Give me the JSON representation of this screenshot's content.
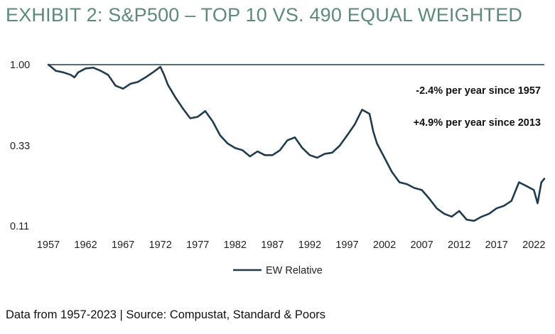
{
  "title": "EXHIBIT 2: S&P500 – TOP 10 VS. 490 EQUAL WEIGHTED",
  "source": "Data from 1957-2023 | Source: Compustat, Standard & Poors",
  "colors": {
    "title": "#5d8a7d",
    "series": "#1f3b4d",
    "refline": "#1f3b4d"
  },
  "chart_data": {
    "type": "line",
    "title": "EXHIBIT 2: S&P500 – TOP 10 VS. 490 EQUAL WEIGHTED",
    "xlabel": "",
    "ylabel": "",
    "xlim": [
      1957,
      2023.4
    ],
    "ylim": [
      0.11,
      1.0
    ],
    "yscale": "log",
    "x_ticks": [
      "1957",
      "1962",
      "1967",
      "1972",
      "1977",
      "1982",
      "1987",
      "1992",
      "1997",
      "2002",
      "2007",
      "2012",
      "2017",
      "2022"
    ],
    "y_ticks": [
      "1.00",
      "0.33",
      "0.11"
    ],
    "reference_line": 1.0,
    "grid": false,
    "legend": {
      "position": "bottom-center",
      "entries": [
        "EW Relative"
      ]
    },
    "annotations": [
      "-2.4% per year since 1957",
      "+4.9% per year since 2013"
    ],
    "series": [
      {
        "name": "EW Relative",
        "x": [
          1957,
          1957.5,
          1958,
          1959,
          1960,
          1960.5,
          1961,
          1962,
          1963,
          1964,
          1965,
          1966,
          1967,
          1968,
          1969,
          1970,
          1971,
          1972,
          1972.5,
          1973,
          1974,
          1975,
          1976,
          1977,
          1978,
          1979,
          1980,
          1981,
          1982,
          1983,
          1984,
          1985,
          1986,
          1987,
          1988,
          1989,
          1990,
          1991,
          1992,
          1993,
          1994,
          1995,
          1996,
          1997,
          1998,
          1999,
          2000,
          2000.5,
          2001,
          2002,
          2003,
          2004,
          2005,
          2006,
          2007,
          2008,
          2009,
          2010,
          2011,
          2012,
          2013,
          2014,
          2015,
          2016,
          2017,
          2018,
          2019,
          2020,
          2021,
          2022,
          2022.5,
          2023,
          2023.4
        ],
        "values": [
          1.0,
          0.96,
          0.92,
          0.9,
          0.87,
          0.84,
          0.9,
          0.95,
          0.96,
          0.92,
          0.87,
          0.75,
          0.72,
          0.77,
          0.79,
          0.84,
          0.9,
          0.97,
          0.87,
          0.76,
          0.64,
          0.55,
          0.48,
          0.49,
          0.53,
          0.46,
          0.38,
          0.34,
          0.32,
          0.31,
          0.285,
          0.305,
          0.29,
          0.29,
          0.31,
          0.355,
          0.37,
          0.32,
          0.29,
          0.28,
          0.295,
          0.3,
          0.33,
          0.38,
          0.44,
          0.54,
          0.51,
          0.4,
          0.34,
          0.28,
          0.23,
          0.2,
          0.195,
          0.185,
          0.18,
          0.16,
          0.14,
          0.13,
          0.125,
          0.135,
          0.12,
          0.118,
          0.125,
          0.13,
          0.14,
          0.145,
          0.155,
          0.2,
          0.19,
          0.18,
          0.15,
          0.2,
          0.21
        ]
      }
    ]
  }
}
